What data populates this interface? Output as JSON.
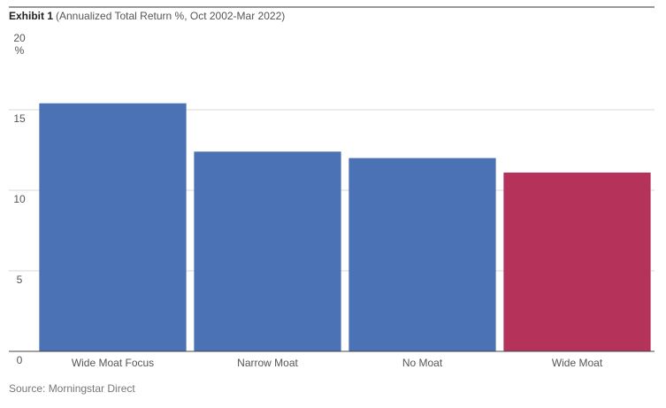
{
  "chart_data": {
    "type": "bar",
    "title": "Exhibit 1",
    "subtitle": "(Annualized Total Return %, Oct 2002-Mar 2022)",
    "y_label": "%",
    "categories": [
      "Wide Moat Focus",
      "Narrow Moat",
      "No Moat",
      "Wide Moat"
    ],
    "values": [
      15.4,
      12.4,
      12.0,
      11.1
    ],
    "colors": [
      "#4a72b4",
      "#4a72b4",
      "#4a72b4",
      "#b5325a"
    ],
    "ylim": [
      0,
      20
    ],
    "yticks": [
      0,
      5,
      10,
      15,
      20
    ],
    "grid": true,
    "source": "Source: Morningstar Direct"
  }
}
